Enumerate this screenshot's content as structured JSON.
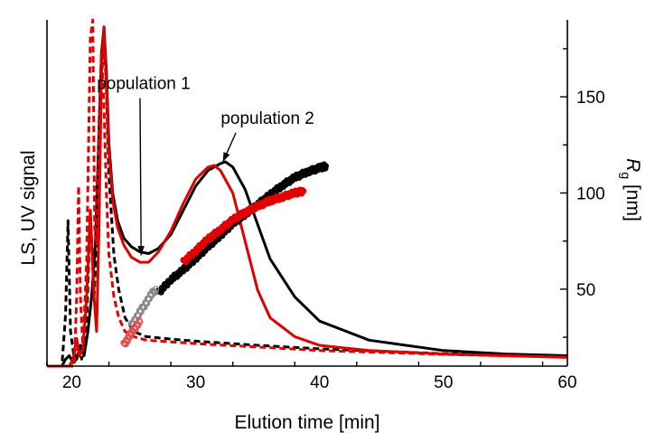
{
  "chart_data": {
    "type": "line",
    "xlabel": "Elution time [min]",
    "ylabel_left": "LS, UV signal",
    "ylabel_right_main": "R",
    "ylabel_right_sub": "g",
    "ylabel_right_unit": " [nm]",
    "xlim": [
      18,
      60
    ],
    "x_ticks": [
      20,
      30,
      40,
      50,
      60
    ],
    "y_left_lim": [
      0,
      1
    ],
    "y_right_lim": [
      10,
      190
    ],
    "y_right_ticks": [
      50,
      100,
      150
    ],
    "grid": false,
    "annotations": [
      {
        "text": "population 1",
        "label_x": 25.8,
        "label_y": 0.8,
        "arrow_to_x": 25.6,
        "arrow_to_y": 0.32
      },
      {
        "text": "population 2",
        "label_x": 35.8,
        "label_y": 0.7,
        "arrow_to_x": 32.2,
        "arrow_to_y": 0.59
      }
    ],
    "series": [
      {
        "color": "#000000",
        "style": "solid",
        "axis": "left",
        "x": [
          18,
          19.2,
          19.5,
          19.8,
          20.1,
          20.4,
          20.7,
          21.0,
          21.3,
          21.6,
          21.9,
          22.2,
          22.4,
          22.6,
          22.8,
          23.0,
          23.3,
          23.7,
          24.2,
          24.8,
          25.5,
          26.2,
          27.0,
          28.0,
          29.0,
          30.0,
          31.0,
          32.0,
          32.4,
          33.0,
          34.0,
          35.0,
          36.0,
          38.0,
          40.0,
          44.0,
          50.0,
          55.0,
          60.0
        ],
        "y": [
          0.0,
          0.0,
          0.02,
          0.03,
          0.01,
          0.02,
          0.06,
          0.03,
          0.1,
          0.2,
          0.35,
          0.68,
          0.9,
          0.98,
          0.85,
          0.64,
          0.5,
          0.42,
          0.37,
          0.345,
          0.33,
          0.325,
          0.34,
          0.38,
          0.45,
          0.52,
          0.565,
          0.585,
          0.59,
          0.575,
          0.51,
          0.41,
          0.31,
          0.2,
          0.13,
          0.075,
          0.045,
          0.035,
          0.03
        ]
      },
      {
        "color": "#000000",
        "style": "dashed",
        "axis": "left",
        "x": [
          18,
          19.2,
          19.5,
          19.7,
          19.9,
          20.2,
          20.5,
          20.8,
          21.2,
          21.5,
          21.8,
          22.0,
          22.2,
          22.4,
          22.6,
          22.8,
          23.0,
          23.4,
          23.8,
          24.3,
          25.0,
          26.0,
          28.0,
          30.0,
          35.0,
          40.0,
          50.0,
          60.0
        ],
        "y": [
          0.0,
          0.0,
          0.15,
          0.42,
          0.1,
          0.02,
          0.05,
          0.02,
          0.12,
          0.45,
          0.2,
          0.35,
          0.55,
          0.82,
          0.96,
          0.8,
          0.55,
          0.32,
          0.22,
          0.14,
          0.1,
          0.085,
          0.078,
          0.072,
          0.06,
          0.05,
          0.036,
          0.028
        ]
      },
      {
        "color": "#e10000",
        "style": "solid",
        "axis": "left",
        "x": [
          18,
          19.8,
          20.1,
          20.4,
          20.6,
          20.9,
          21.2,
          21.5,
          21.8,
          22.0,
          22.2,
          22.4,
          22.6,
          22.8,
          23.0,
          23.3,
          23.7,
          24.2,
          24.8,
          25.5,
          26.2,
          27.0,
          28.0,
          29.0,
          30.0,
          31.0,
          31.5,
          32.0,
          33.0,
          34.0,
          35.0,
          36.0,
          38.0,
          40.0,
          44.0,
          50.0,
          55.0,
          60.0
        ],
        "y": [
          0.0,
          0.0,
          0.02,
          0.08,
          0.03,
          0.05,
          0.2,
          0.45,
          0.2,
          0.1,
          0.4,
          0.85,
          0.98,
          0.82,
          0.62,
          0.48,
          0.4,
          0.35,
          0.315,
          0.3,
          0.3,
          0.33,
          0.39,
          0.47,
          0.54,
          0.575,
          0.58,
          0.565,
          0.5,
          0.36,
          0.22,
          0.14,
          0.085,
          0.06,
          0.045,
          0.035,
          0.03,
          0.025
        ]
      },
      {
        "color": "#e10000",
        "style": "dashed",
        "axis": "left",
        "x": [
          18,
          20.2,
          20.4,
          20.55,
          20.7,
          20.9,
          21.2,
          21.5,
          21.7,
          21.85,
          22.0,
          22.2,
          22.4,
          22.6,
          22.8,
          23.0,
          23.4,
          23.8,
          24.3,
          25.0,
          26.0,
          28.0,
          30.0,
          35.0,
          40.0,
          50.0,
          60.0
        ],
        "y": [
          0.0,
          0.0,
          0.2,
          0.52,
          0.2,
          0.05,
          0.3,
          0.95,
          1.0,
          0.4,
          0.35,
          0.7,
          0.9,
          0.75,
          0.5,
          0.32,
          0.2,
          0.14,
          0.1,
          0.085,
          0.075,
          0.07,
          0.065,
          0.055,
          0.045,
          0.034,
          0.026
        ]
      },
      {
        "color": "#000000",
        "style": "filled-markers",
        "axis": "right",
        "x": [
          27.0,
          28.0,
          29.0,
          30.0,
          31.0,
          32.0,
          33.0,
          34.0,
          35.0,
          36.0,
          37.0,
          38.0,
          39.0,
          40.0,
          40.5
        ],
        "y": [
          48,
          55,
          60,
          66,
          72,
          78,
          84,
          89,
          94,
          99,
          104,
          108,
          111,
          113,
          114
        ]
      },
      {
        "color": "#e10000",
        "style": "filled-markers",
        "axis": "right",
        "x": [
          29.0,
          30.0,
          31.0,
          32.0,
          33.0,
          34.0,
          35.0,
          36.0,
          37.0,
          38.0,
          38.7
        ],
        "y": [
          64,
          70,
          76,
          81,
          86,
          90,
          93,
          96,
          98,
          100,
          101
        ]
      },
      {
        "color": "#888888",
        "style": "open-markers",
        "axis": "right",
        "x": [
          24.8,
          25.2,
          25.6,
          26.0,
          26.4,
          26.8
        ],
        "y": [
          31,
          35,
          39,
          43,
          47,
          50
        ]
      },
      {
        "color": "#e05050",
        "style": "open-markers",
        "axis": "right",
        "x": [
          24.2,
          24.5,
          24.8,
          25.1,
          25.5
        ],
        "y": [
          21,
          24,
          27,
          30,
          33
        ]
      }
    ]
  }
}
